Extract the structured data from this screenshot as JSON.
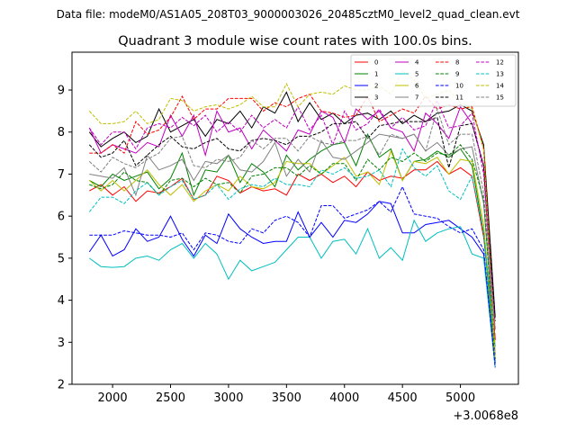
{
  "figure": {
    "suptitle": "Data file: modeM0/AS1A05_208T03_9000003026_20485cztM0_level2_quad_clean.evt"
  },
  "chart_data": {
    "type": "line",
    "title": "Quadrant 3 module wise count rates with 100.0s bins.",
    "xlabel": "",
    "ylabel": "",
    "x_offset_label": "+3.0068e8",
    "xlim": [
      1650,
      5500
    ],
    "ylim": [
      2,
      9.9
    ],
    "xticks": [
      2000,
      2500,
      3000,
      3500,
      4000,
      4500,
      5000
    ],
    "yticks": [
      2,
      3,
      4,
      5,
      6,
      7,
      8,
      9
    ],
    "grid": false,
    "legend_position": "top-right",
    "x": [
      1800,
      1900,
      2000,
      2100,
      2200,
      2300,
      2400,
      2500,
      2600,
      2700,
      2800,
      2900,
      3000,
      3100,
      3200,
      3300,
      3400,
      3500,
      3600,
      3700,
      3800,
      3900,
      4000,
      4100,
      4200,
      4300,
      4400,
      4500,
      4600,
      4700,
      4800,
      4900,
      5000,
      5100,
      5200,
      5300
    ],
    "series": [
      {
        "name": "0",
        "color": "#ff0000",
        "dash": "solid",
        "values": [
          6.6,
          6.75,
          6.5,
          6.7,
          6.35,
          6.6,
          6.55,
          6.7,
          6.9,
          6.4,
          6.5,
          6.95,
          6.85,
          6.55,
          6.7,
          6.6,
          6.65,
          6.5,
          7.0,
          6.85,
          7.0,
          6.8,
          6.95,
          6.7,
          7.05,
          6.85,
          6.95,
          6.9,
          7.1,
          7.1,
          7.3,
          7.0,
          7.15,
          6.95,
          5.5,
          3.1
        ]
      },
      {
        "name": "1",
        "color": "#008000",
        "dash": "solid",
        "values": [
          6.85,
          6.7,
          7.0,
          6.85,
          6.95,
          7.05,
          6.65,
          6.9,
          7.5,
          6.5,
          7.1,
          7.05,
          7.45,
          6.8,
          7.25,
          7.05,
          6.7,
          7.45,
          7.1,
          7.35,
          7.55,
          7.7,
          7.75,
          7.2,
          7.95,
          7.4,
          7.6,
          6.85,
          7.3,
          7.35,
          7.55,
          7.4,
          7.6,
          7.2,
          5.6,
          2.5
        ]
      },
      {
        "name": "2",
        "color": "#0000ff",
        "dash": "solid",
        "values": [
          5.15,
          5.55,
          5.05,
          5.2,
          5.7,
          5.4,
          5.5,
          6.0,
          5.45,
          5.05,
          5.55,
          5.35,
          6.05,
          5.7,
          5.5,
          5.35,
          5.4,
          5.4,
          6.1,
          5.5,
          5.85,
          5.5,
          5.9,
          5.85,
          6.05,
          6.35,
          6.3,
          5.6,
          5.6,
          5.8,
          5.85,
          5.9,
          5.7,
          5.5,
          5.1,
          2.5
        ]
      },
      {
        "name": "3",
        "color": "#000000",
        "dash": "solid",
        "values": [
          8.0,
          7.65,
          7.85,
          8.0,
          7.75,
          7.9,
          8.55,
          8.0,
          8.15,
          8.3,
          7.9,
          8.3,
          8.2,
          8.5,
          8.1,
          8.6,
          8.45,
          8.95,
          8.25,
          8.7,
          8.3,
          8.45,
          8.2,
          8.4,
          8.45,
          8.3,
          8.5,
          8.2,
          8.4,
          8.25,
          8.45,
          8.5,
          8.65,
          8.5,
          7.7,
          3.6
        ]
      },
      {
        "name": "4",
        "color": "#bf00bf",
        "dash": "solid",
        "values": [
          8.1,
          7.5,
          7.7,
          7.6,
          7.5,
          7.75,
          7.65,
          8.4,
          7.9,
          8.4,
          7.45,
          8.5,
          8.0,
          8.1,
          7.6,
          8.05,
          7.8,
          7.55,
          8.05,
          7.95,
          8.5,
          8.35,
          7.75,
          8.55,
          8.3,
          8.5,
          8.1,
          8.0,
          7.55,
          8.45,
          8.2,
          7.85,
          8.6,
          8.2,
          7.2,
          2.7
        ]
      },
      {
        "name": "5",
        "color": "#00bfbf",
        "dash": "solid",
        "values": [
          5.0,
          4.8,
          4.78,
          4.8,
          5.0,
          5.05,
          4.95,
          5.2,
          5.35,
          5.0,
          5.35,
          5.1,
          4.5,
          4.95,
          4.7,
          4.8,
          4.9,
          5.2,
          5.5,
          5.5,
          5.0,
          5.4,
          5.45,
          5.1,
          5.7,
          5.0,
          5.25,
          4.95,
          5.9,
          5.4,
          5.6,
          5.7,
          5.75,
          5.1,
          5.0,
          2.4
        ]
      },
      {
        "name": "6",
        "color": "#bfbf00",
        "dash": "solid",
        "values": [
          6.85,
          6.6,
          6.85,
          6.6,
          6.85,
          7.1,
          6.75,
          6.5,
          6.75,
          6.35,
          6.6,
          6.75,
          6.6,
          6.95,
          6.7,
          6.65,
          6.8,
          7.3,
          7.25,
          7.25,
          7.0,
          7.2,
          7.4,
          6.95,
          7.05,
          6.75,
          7.55,
          6.85,
          7.3,
          7.25,
          7.4,
          7.0,
          7.35,
          7.3,
          5.8,
          2.6
        ]
      },
      {
        "name": "7",
        "color": "#808080",
        "dash": "solid",
        "values": [
          7.0,
          6.95,
          6.9,
          7.15,
          6.5,
          7.45,
          7.1,
          7.2,
          7.35,
          6.85,
          7.3,
          7.25,
          7.45,
          7.1,
          7.05,
          7.3,
          7.75,
          6.95,
          7.35,
          7.05,
          7.8,
          7.4,
          7.35,
          7.55,
          7.75,
          7.95,
          7.9,
          7.85,
          7.95,
          7.55,
          7.75,
          7.45,
          7.6,
          7.65,
          6.3,
          2.9
        ]
      },
      {
        "name": "8",
        "color": "#ff0000",
        "dash": "dashed",
        "values": [
          7.5,
          7.5,
          7.7,
          7.5,
          8.25,
          7.95,
          8.05,
          8.35,
          8.85,
          8.3,
          8.55,
          8.55,
          8.8,
          8.8,
          8.8,
          8.5,
          8.7,
          8.6,
          8.8,
          8.9,
          8.5,
          8.45,
          8.35,
          8.4,
          8.85,
          8.25,
          8.4,
          8.55,
          8.45,
          8.85,
          8.55,
          8.65,
          8.55,
          8.6,
          7.6,
          3.05
        ]
      },
      {
        "name": "9",
        "color": "#008000",
        "dash": "dashed",
        "values": [
          6.75,
          6.65,
          6.75,
          7.05,
          6.85,
          6.8,
          6.5,
          6.85,
          6.9,
          6.7,
          6.9,
          6.75,
          6.8,
          6.55,
          6.95,
          7.0,
          7.15,
          7.15,
          6.95,
          7.2,
          7.0,
          7.25,
          7.25,
          6.85,
          7.35,
          7.1,
          7.4,
          7.3,
          7.5,
          7.3,
          7.5,
          7.45,
          7.7,
          7.35,
          6.4,
          2.6
        ]
      },
      {
        "name": "10",
        "color": "#0000ff",
        "dash": "dashed",
        "values": [
          5.55,
          5.55,
          5.55,
          5.65,
          5.6,
          5.55,
          5.55,
          5.5,
          5.6,
          5.2,
          5.6,
          5.55,
          5.4,
          5.35,
          5.7,
          5.6,
          5.9,
          6.0,
          5.85,
          5.5,
          6.25,
          6.25,
          5.95,
          6.05,
          6.15,
          6.35,
          6.1,
          6.7,
          6.05,
          6.0,
          5.95,
          5.75,
          5.6,
          5.7,
          5.2,
          2.4
        ]
      },
      {
        "name": "11",
        "color": "#000000",
        "dash": "dashed",
        "values": [
          7.7,
          7.4,
          7.5,
          7.8,
          7.2,
          7.45,
          7.7,
          7.9,
          7.65,
          7.6,
          7.75,
          7.85,
          7.6,
          7.55,
          7.8,
          7.85,
          7.8,
          7.7,
          7.9,
          7.9,
          8.0,
          8.2,
          8.2,
          8.25,
          7.85,
          8.15,
          8.2,
          8.25,
          8.25,
          8.25,
          8.35,
          7.15,
          8.15,
          8.2,
          7.2,
          3.5
        ]
      },
      {
        "name": "12",
        "color": "#bf00bf",
        "dash": "dashed",
        "values": [
          8.1,
          7.7,
          8.0,
          8.0,
          7.6,
          8.1,
          8.2,
          8.1,
          8.35,
          8.15,
          8.4,
          8.0,
          8.25,
          8.0,
          8.4,
          8.1,
          8.3,
          8.1,
          8.6,
          8.05,
          8.4,
          7.7,
          8.5,
          8.05,
          8.2,
          8.55,
          8.1,
          8.35,
          8.05,
          8.15,
          8.75,
          8.1,
          8.15,
          8.45,
          7.0,
          3.3
        ]
      },
      {
        "name": "13",
        "color": "#00bfbf",
        "dash": "dashed",
        "values": [
          6.1,
          6.45,
          6.45,
          6.3,
          6.6,
          6.8,
          6.5,
          6.7,
          6.85,
          6.4,
          6.5,
          6.75,
          6.4,
          6.65,
          6.75,
          6.7,
          6.9,
          6.75,
          6.75,
          6.7,
          7.1,
          7.0,
          7.15,
          6.9,
          6.95,
          7.1,
          6.7,
          7.6,
          7.15,
          6.95,
          7.2,
          6.6,
          6.4,
          6.95,
          5.6,
          2.9
        ]
      },
      {
        "name": "14",
        "color": "#bfbf00",
        "dash": "dashed",
        "values": [
          8.5,
          8.2,
          8.2,
          8.25,
          8.5,
          8.2,
          8.3,
          8.8,
          8.75,
          8.5,
          8.6,
          8.65,
          8.55,
          8.65,
          8.85,
          8.6,
          8.6,
          9.15,
          8.6,
          8.9,
          8.95,
          8.9,
          9.1,
          9.0,
          9.0,
          9.1,
          8.9,
          9.45,
          9.25,
          8.8,
          8.9,
          9.0,
          8.7,
          8.55,
          7.6,
          2.7
        ]
      },
      {
        "name": "15",
        "color": "#808080",
        "dash": "dashed",
        "values": [
          7.3,
          7.05,
          7.4,
          7.25,
          7.15,
          7.35,
          7.5,
          7.85,
          7.9,
          7.2,
          7.15,
          7.35,
          7.3,
          7.4,
          7.8,
          7.6,
          7.85,
          7.85,
          7.55,
          7.9,
          7.75,
          7.7,
          7.8,
          7.8,
          7.9,
          7.45,
          7.95,
          7.85,
          7.95,
          7.55,
          8.55,
          7.7,
          7.95,
          7.95,
          6.55,
          3.3
        ]
      }
    ]
  }
}
